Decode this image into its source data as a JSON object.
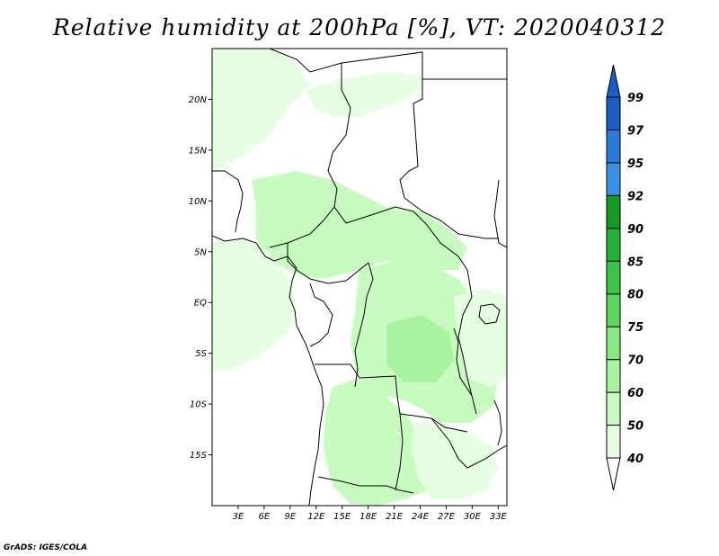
{
  "title": "Relative humidity at 200hPa [%], VT: 2020040312",
  "credit": "GrADS: IGES/COLA",
  "map": {
    "lon_range": [
      0,
      34
    ],
    "lat_range": [
      -20,
      25
    ],
    "lat_labels": [
      {
        "value": 20,
        "text": "20N"
      },
      {
        "value": 15,
        "text": "15N"
      },
      {
        "value": 10,
        "text": "10N"
      },
      {
        "value": 5,
        "text": "5N"
      },
      {
        "value": 0,
        "text": "EQ"
      },
      {
        "value": -5,
        "text": "5S"
      },
      {
        "value": -10,
        "text": "10S"
      },
      {
        "value": -15,
        "text": "15S"
      }
    ],
    "lon_labels": [
      {
        "value": 3,
        "text": "3E"
      },
      {
        "value": 6,
        "text": "6E"
      },
      {
        "value": 9,
        "text": "9E"
      },
      {
        "value": 12,
        "text": "12E"
      },
      {
        "value": 15,
        "text": "15E"
      },
      {
        "value": 18,
        "text": "18E"
      },
      {
        "value": 21,
        "text": "21E"
      },
      {
        "value": 24,
        "text": "24E"
      },
      {
        "value": 27,
        "text": "27E"
      },
      {
        "value": 30,
        "text": "30E"
      },
      {
        "value": 33,
        "text": "33E"
      }
    ]
  },
  "colorbar": {
    "levels": [
      "40",
      "50",
      "60",
      "70",
      "75",
      "80",
      "85",
      "90",
      "92",
      "95",
      "97",
      "99"
    ],
    "colors": [
      "#ffffff",
      "#e6ffe2",
      "#c8fbc0",
      "#a8f3a0",
      "#8ae882",
      "#5ad65e",
      "#3cc448",
      "#22b035",
      "#139a22",
      "#3b90e6",
      "#2a78d8",
      "#1a5ec4"
    ]
  }
}
